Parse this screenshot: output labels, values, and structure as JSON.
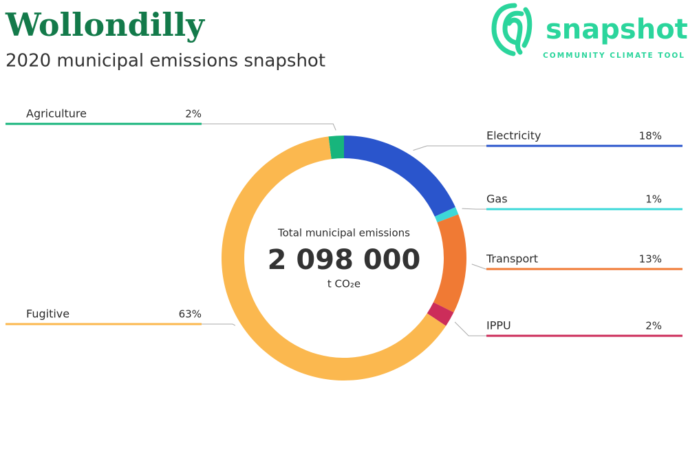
{
  "chart_data": {
    "type": "pie",
    "title": "Wollondilly",
    "subtitle": "2020 municipal emissions snapshot",
    "center_label": "Total municipal emissions",
    "total": "2 098 000",
    "unit": "t CO₂e",
    "categories": [
      "Agriculture",
      "Electricity",
      "Gas",
      "Transport",
      "IPPU",
      "Fugitive"
    ],
    "values": [
      2,
      18,
      1,
      13,
      2,
      63
    ],
    "value_labels": [
      "2%",
      "18%",
      "1%",
      "13%",
      "2%",
      "63%"
    ],
    "colors": [
      "#17b57c",
      "#2a55cc",
      "#3dd8d8",
      "#f07a34",
      "#cc2d5a",
      "#fbb84f"
    ]
  },
  "logo": {
    "name": "snapshot",
    "tagline": "COMMUNITY CLIMATE TOOL"
  }
}
